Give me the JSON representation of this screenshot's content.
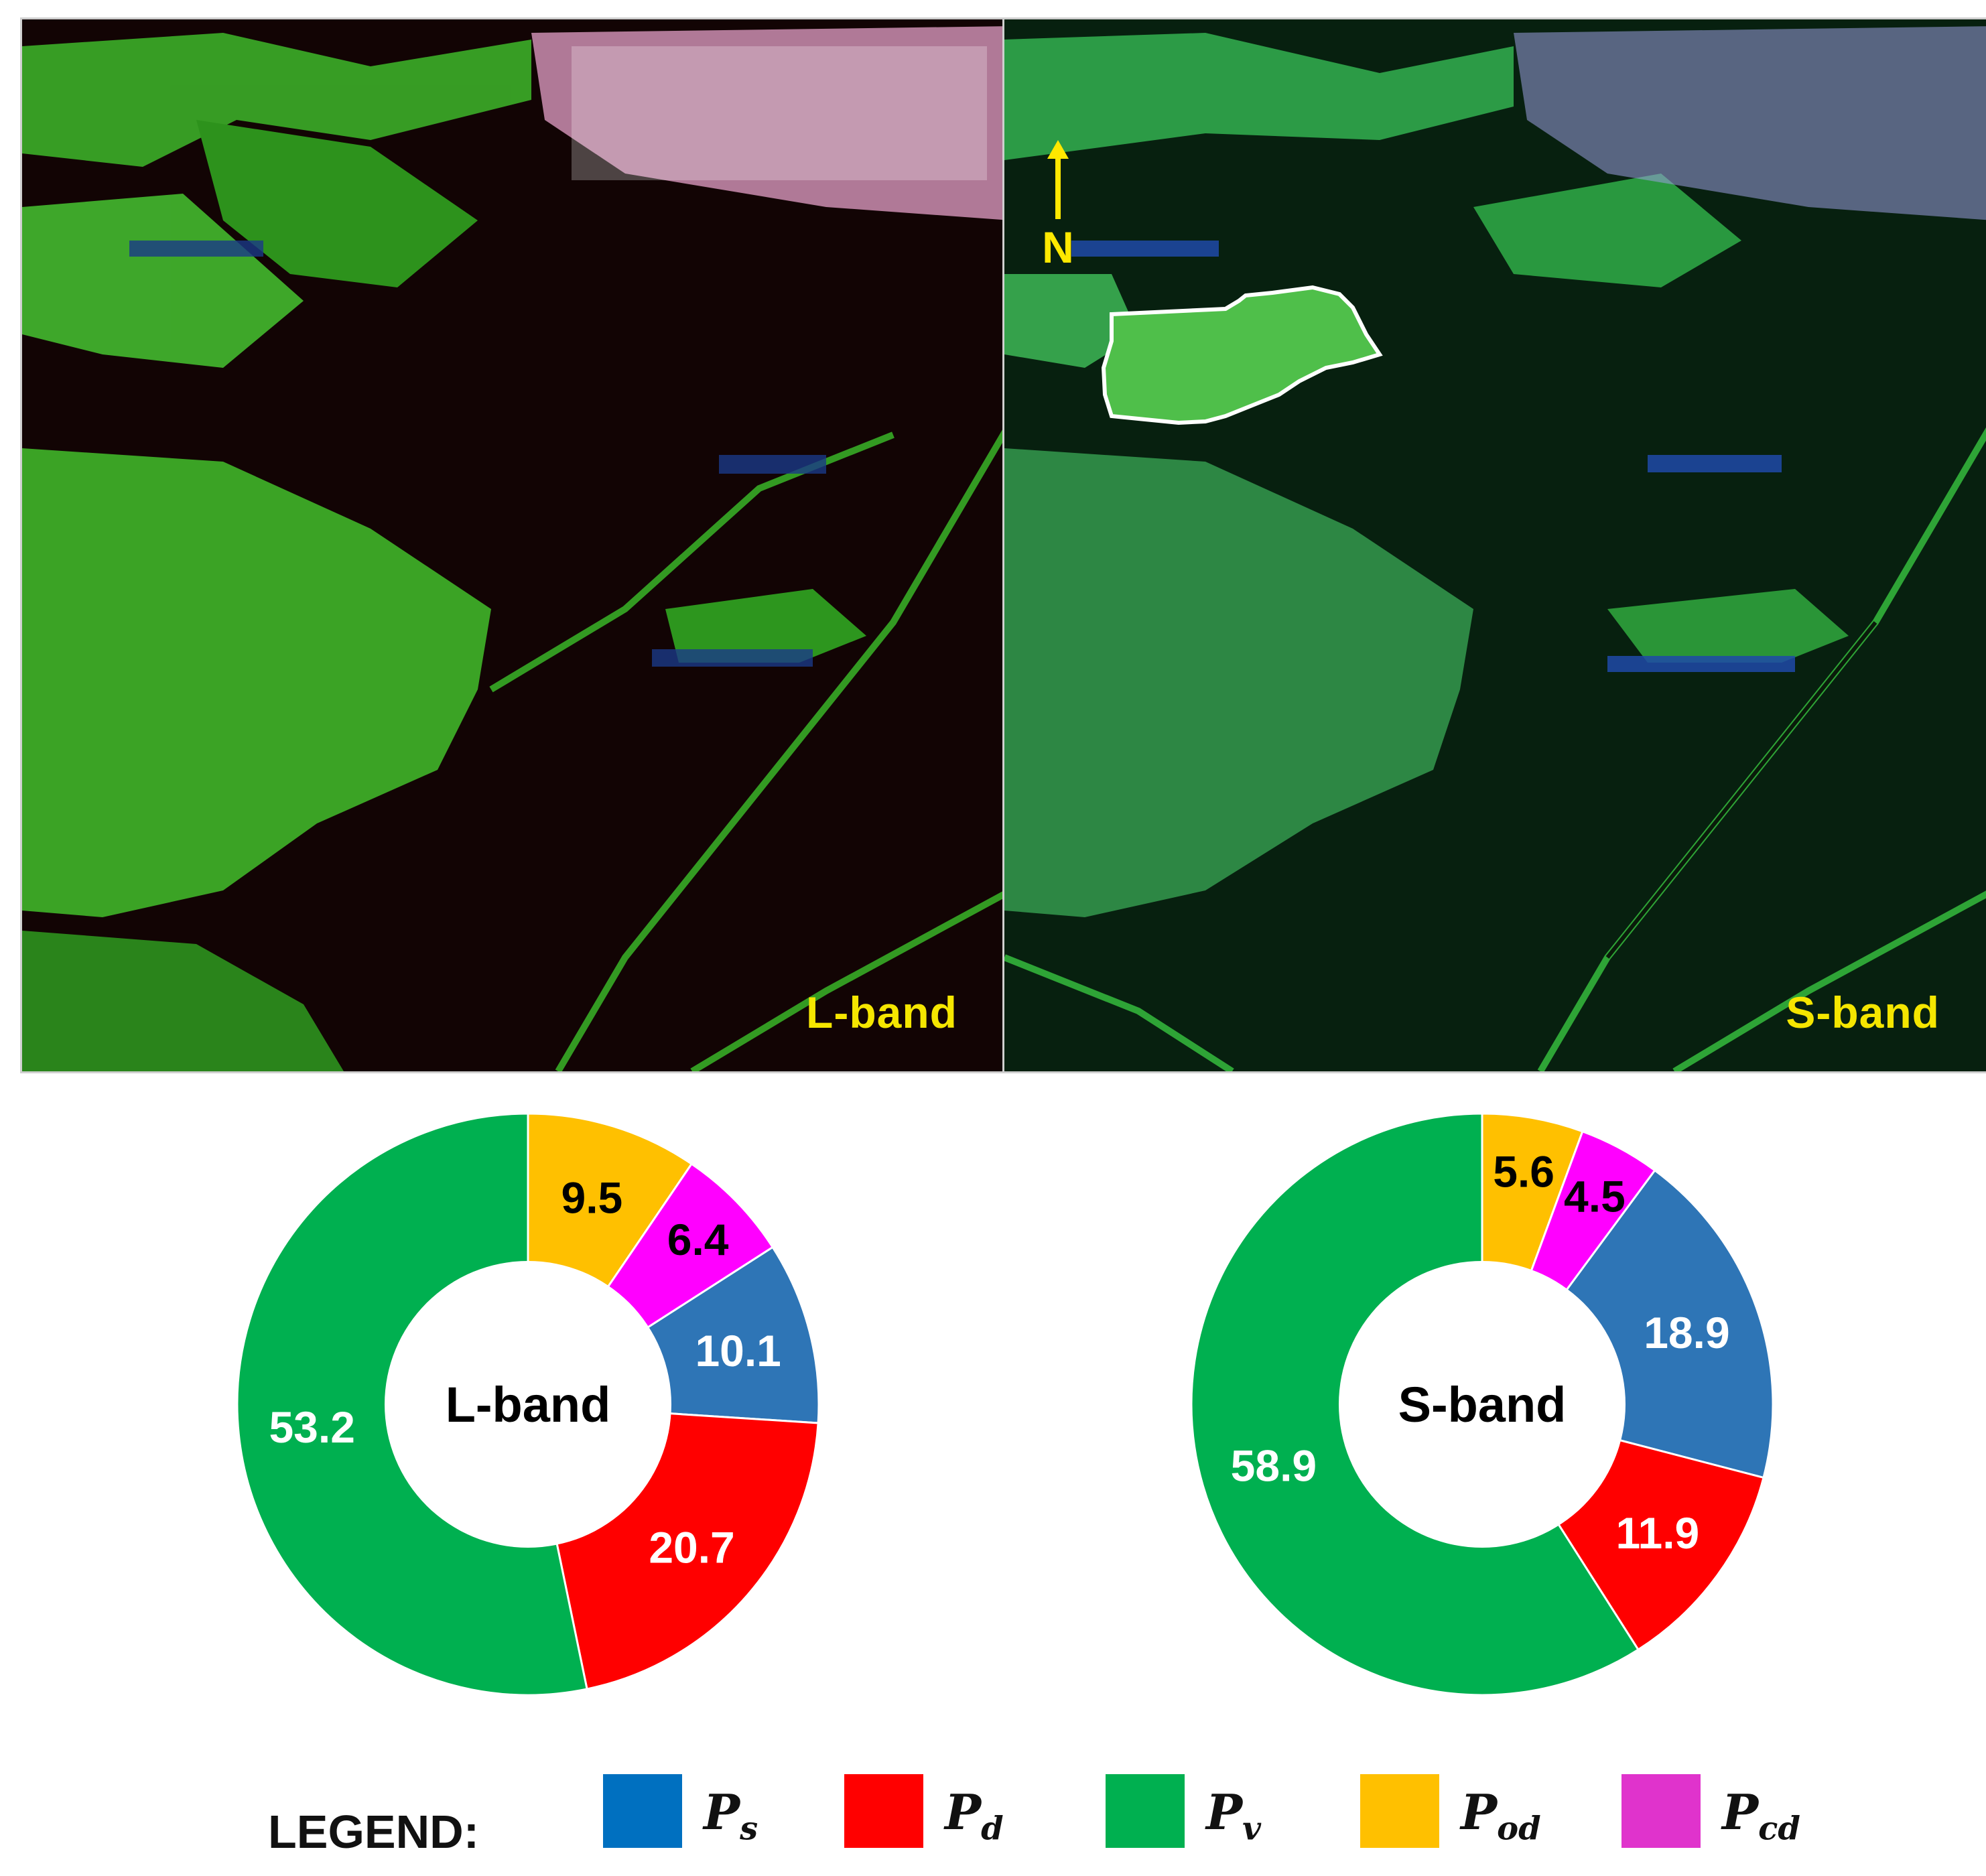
{
  "panels": [
    {
      "id": "l",
      "label": "L-band"
    },
    {
      "id": "s",
      "label": "S-band",
      "north_label": "N"
    }
  ],
  "chart_data": [
    {
      "type": "pie",
      "variant": "donut",
      "title": "L-band",
      "categories": [
        "Ps",
        "Pd",
        "Pv",
        "Pod",
        "Pcd"
      ],
      "values": [
        10.1,
        20.7,
        53.2,
        9.5,
        6.4
      ],
      "colors": [
        "#2e75b6",
        "#ff0000",
        "#00b050",
        "#ffc000",
        "#ff00ff"
      ],
      "label_colors": [
        "#ffffff",
        "#ffffff",
        "#ffffff",
        "#000000",
        "#000000"
      ],
      "start": "top",
      "order": "clockwise from 12 o'clock: Pod, Pcd, Ps, Pd, Pv"
    },
    {
      "type": "pie",
      "variant": "donut",
      "title": "S-band",
      "categories": [
        "Ps",
        "Pd",
        "Pv",
        "Pod",
        "Pcd"
      ],
      "values": [
        18.9,
        11.9,
        58.9,
        5.6,
        4.5
      ],
      "colors": [
        "#2e75b6",
        "#ff0000",
        "#00b050",
        "#ffc000",
        "#ff00ff"
      ],
      "label_colors": [
        "#ffffff",
        "#ffffff",
        "#ffffff",
        "#000000",
        "#000000"
      ],
      "start": "top",
      "order": "clockwise from 12 o'clock: Pod, Pcd, Ps, Pd, Pv"
    }
  ],
  "legend": {
    "title": "LEGEND:",
    "items": [
      {
        "key": "Ps",
        "base": "P",
        "sub": "s",
        "color": "#0070c0"
      },
      {
        "key": "Pd",
        "base": "P",
        "sub": "d",
        "color": "#ff0000"
      },
      {
        "key": "Pv",
        "base": "P",
        "sub": "v",
        "color": "#00b050"
      },
      {
        "key": "Pod",
        "base": "P",
        "sub": "od",
        "color": "#ffc000"
      },
      {
        "key": "Pcd",
        "base": "P",
        "sub": "cd",
        "color": "#e033cc"
      }
    ]
  }
}
